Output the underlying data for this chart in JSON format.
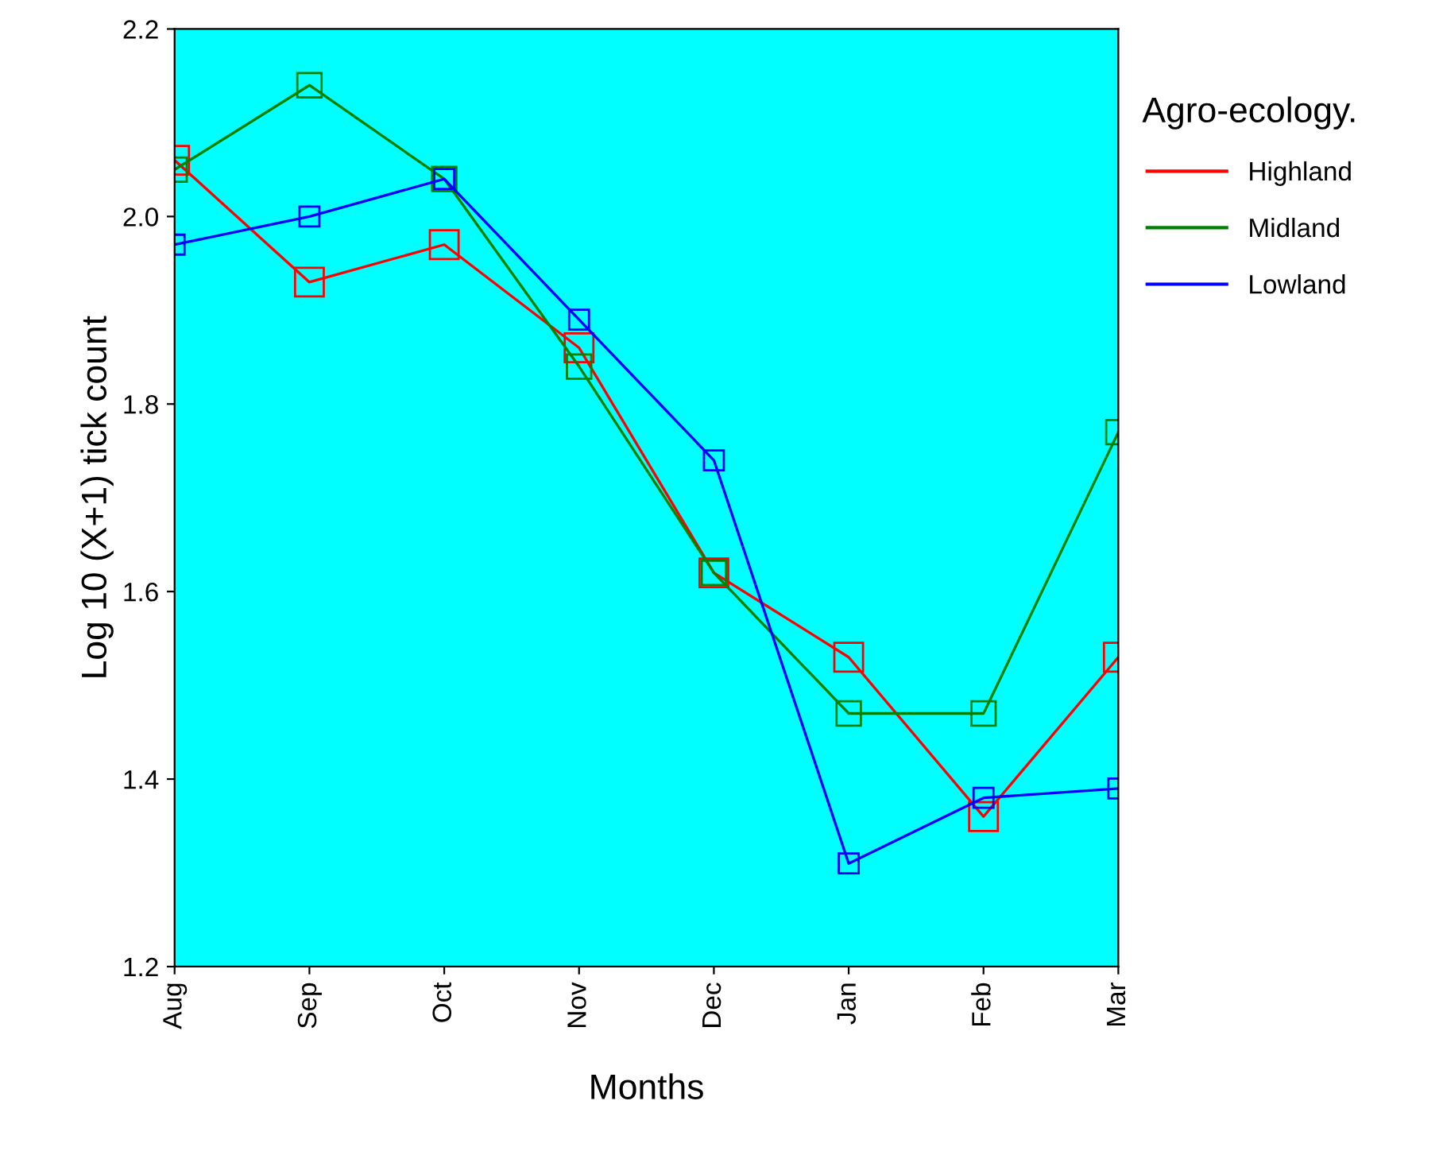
{
  "chart_data": {
    "type": "line",
    "xlabel": "Months",
    "ylabel": "Log 10 (X+1) tick count",
    "legend_title": "Agro-ecology.",
    "categories": [
      "Aug",
      "Sep",
      "Oct",
      "Nov",
      "Dec",
      "Jan",
      "Feb",
      "Mar"
    ],
    "series": [
      {
        "name": "Highland",
        "color": "#ff0000",
        "values": [
          2.06,
          1.93,
          1.97,
          1.86,
          1.62,
          1.53,
          1.36,
          1.53
        ]
      },
      {
        "name": "Midland",
        "color": "#008000",
        "values": [
          2.05,
          2.14,
          2.04,
          1.84,
          1.62,
          1.47,
          1.47,
          1.77
        ]
      },
      {
        "name": "Lowland",
        "color": "#0000ff",
        "values": [
          1.97,
          2.0,
          2.04,
          1.89,
          1.74,
          1.31,
          1.38,
          1.39
        ]
      }
    ],
    "ylim": [
      1.2,
      2.2
    ],
    "yticks": [
      {
        "value": 1.2,
        "label": "1.2"
      },
      {
        "value": 1.4,
        "label": "1.4"
      },
      {
        "value": 1.6,
        "label": "1.6"
      },
      {
        "value": 1.8,
        "label": "1.8"
      },
      {
        "value": 2.0,
        "label": "2.0"
      },
      {
        "value": 2.2,
        "label": "2.2"
      }
    ],
    "marker": "square",
    "line_style": "solid",
    "grid": false,
    "legend": "right"
  }
}
